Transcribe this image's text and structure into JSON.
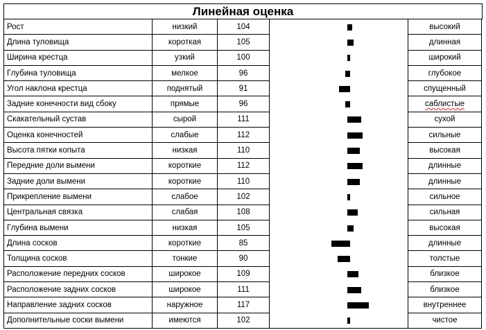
{
  "chart_data": {
    "type": "bar",
    "title": "Линейная оценка",
    "baseline": 100,
    "categories": [
      "Рост",
      "Длина туловища",
      "Ширина крестца",
      "Глубина туловища",
      "Угол наклона крестца",
      "Задние конечности вид сбоку",
      "Скакательный сустав",
      "Оценка конечностей",
      "Высота пятки копыта",
      "Передние доли вымени",
      "Задние доли вымени",
      "Прикрепление вымени",
      "Центральная связка",
      "Глубина вымени",
      "Длина сосков",
      "Толщина сосков",
      "Расположение передних сосков",
      "Расположение задних сосков",
      "Направление задних сосков",
      "Дополнительные соски вымени"
    ],
    "values": [
      104,
      105,
      100,
      96,
      91,
      96,
      111,
      112,
      110,
      112,
      110,
      102,
      108,
      105,
      85,
      90,
      109,
      111,
      117,
      102
    ],
    "low_labels": [
      "низкий",
      "короткая",
      "узкий",
      "мелкое",
      "поднятый",
      "прямые",
      "сырой",
      "слабые",
      "низкая",
      "короткие",
      "короткие",
      "слабое",
      "слабая",
      "низкая",
      "короткие",
      "тонкие",
      "широкое",
      "широкое",
      "наружное",
      "имеются"
    ],
    "high_labels": [
      "высокий",
      "длинная",
      "широкий",
      "глубокое",
      "спущенный",
      "саблистые",
      "сухой",
      "сильные",
      "высокая",
      "длинные",
      "длинные",
      "сильное",
      "сильная",
      "высокая",
      "длинные",
      "толстые",
      "близкое",
      "близкое",
      "внутреннее",
      "чистое"
    ]
  }
}
